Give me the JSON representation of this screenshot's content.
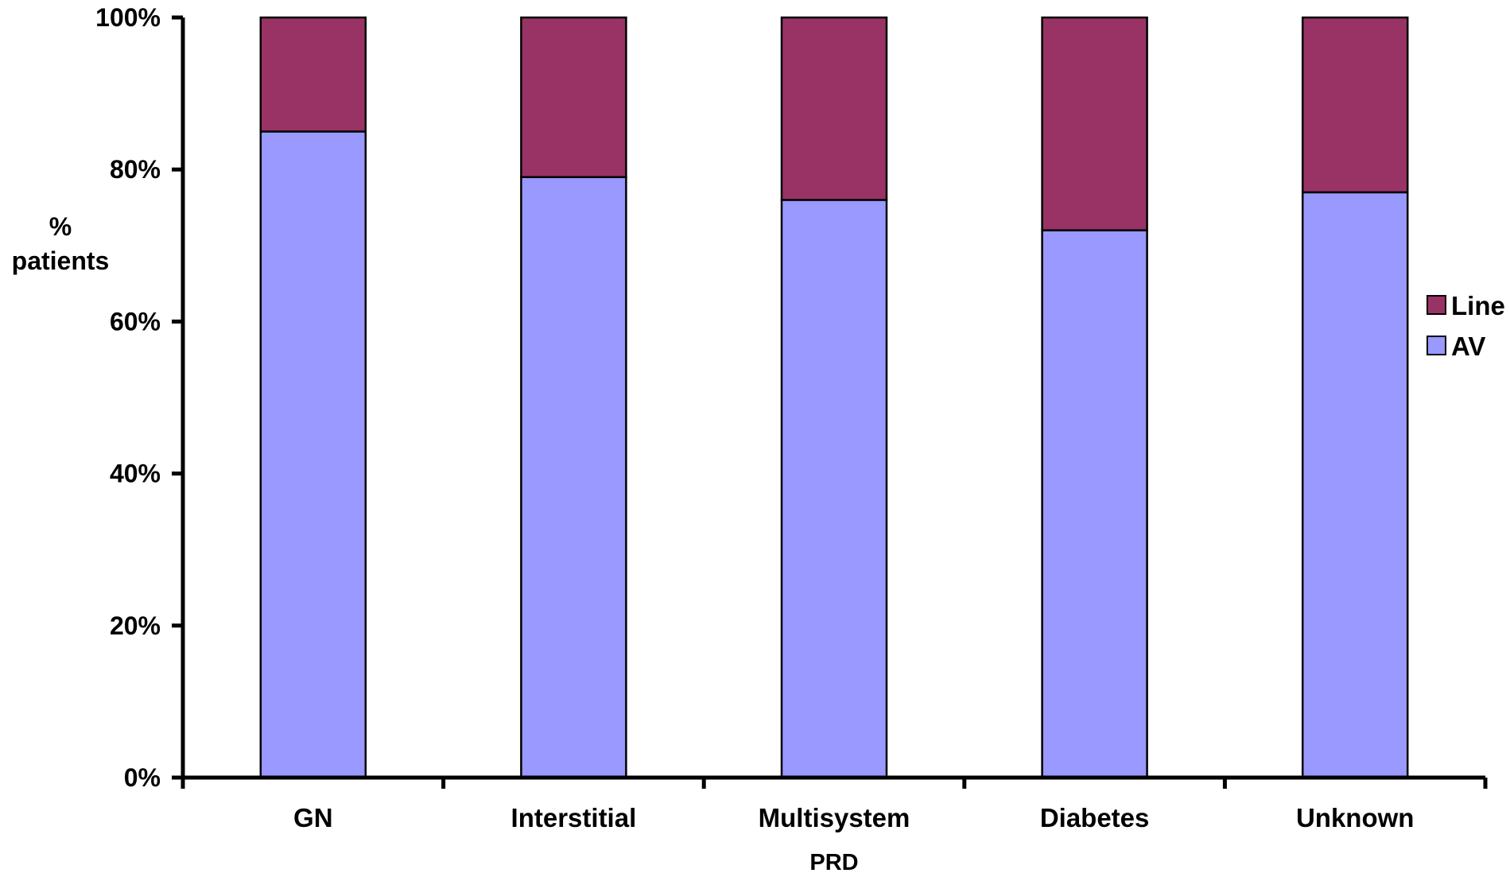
{
  "chart_data": {
    "type": "bar",
    "stacked": true,
    "categories": [
      "GN",
      "Interstitial",
      "Multisystem",
      "Diabetes",
      "Unknown"
    ],
    "series": [
      {
        "name": "AV",
        "values": [
          85,
          79,
          76,
          72,
          77
        ],
        "color": "#9999ff"
      },
      {
        "name": "Line",
        "values": [
          15,
          21,
          24,
          28,
          23
        ],
        "color": "#993366"
      }
    ],
    "ylim": [
      0,
      100
    ],
    "yticks": [
      0,
      20,
      40,
      60,
      80,
      100
    ],
    "ytick_labels": [
      "0%",
      "20%",
      "40%",
      "60%",
      "80%",
      "100%"
    ],
    "ylabel_lines": [
      "%",
      "patients"
    ],
    "xlabel": "PRD",
    "title": "",
    "grid": false,
    "legend_position": "right",
    "legend_order": [
      "Line",
      "AV"
    ]
  }
}
